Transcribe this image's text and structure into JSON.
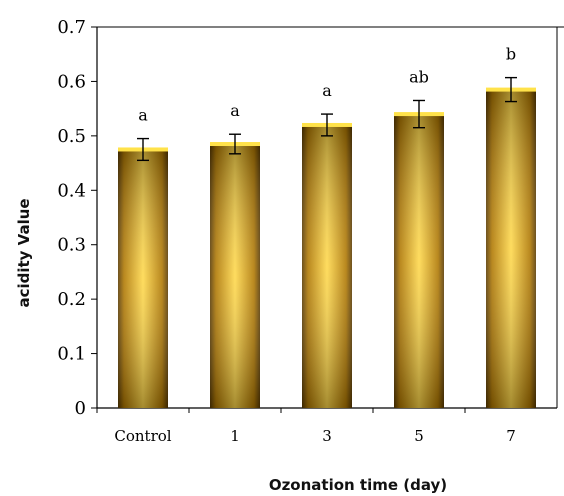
{
  "chart_data": {
    "type": "bar",
    "categories": [
      "Control",
      "1",
      "3",
      "5",
      "7"
    ],
    "values": [
      0.475,
      0.485,
      0.52,
      0.54,
      0.585
    ],
    "errors": [
      0.02,
      0.018,
      0.02,
      0.025,
      0.022
    ],
    "significance_labels": [
      "a",
      "a",
      "a",
      "ab",
      "b"
    ],
    "xlabel": "Ozonation time (day)",
    "ylabel": "acidity Value",
    "ylim": [
      0,
      0.7
    ],
    "yticks": [
      "0",
      "0.1",
      "0.2",
      "0.3",
      "0.4",
      "0.5",
      "0.6",
      "0.7"
    ],
    "grid": false,
    "bar_color": "#e0a000",
    "title": ""
  }
}
